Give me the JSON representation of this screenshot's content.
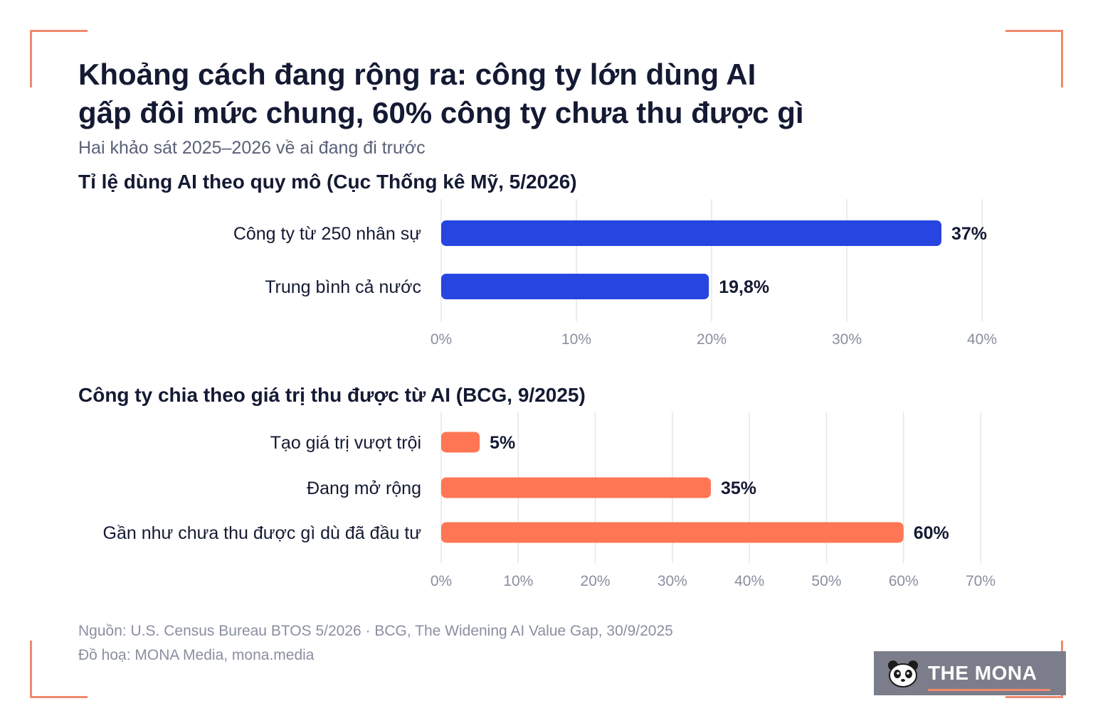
{
  "header": {
    "title_line1": "Khoảng cách đang rộng ra: công ty lớn dùng AI",
    "title_line2": "gấp đôi mức chung, 60% công ty chưa thu được gì",
    "subtitle": "Hai khảo sát 2025–2026 về ai đang đi trước"
  },
  "chart_data": [
    {
      "type": "bar",
      "orientation": "horizontal",
      "title": "Tỉ lệ dùng AI theo quy mô (Cục Thống kê Mỹ, 5/2026)",
      "categories": [
        "Công ty từ 250 nhân sự",
        "Trung bình cả nước"
      ],
      "values": [
        37,
        19.8
      ],
      "value_labels": [
        "37%",
        "19,8%"
      ],
      "xlim": [
        0,
        40
      ],
      "ticks": [
        "0%",
        "10%",
        "20%",
        "30%",
        "40%"
      ],
      "color": "#2745e0",
      "grid": true
    },
    {
      "type": "bar",
      "orientation": "horizontal",
      "title": "Công ty chia theo giá trị thu được từ AI (BCG, 9/2025)",
      "categories": [
        "Tạo giá trị vượt trội",
        "Đang mở rộng",
        "Gần như chưa thu được gì dù đã đầu tư"
      ],
      "values": [
        5,
        35,
        60
      ],
      "value_labels": [
        "5%",
        "35%",
        "60%"
      ],
      "xlim": [
        0,
        70
      ],
      "ticks": [
        "0%",
        "10%",
        "20%",
        "30%",
        "40%",
        "50%",
        "60%",
        "70%"
      ],
      "color": "#ff7655",
      "grid": true
    }
  ],
  "footer": {
    "source": "Nguồn: U.S. Census Bureau BTOS 5/2026 · BCG, The Widening AI Value Gap, 30/9/2025",
    "credit": "Đồ hoạ: MONA Media, mona.media"
  },
  "logo": {
    "text": "THE MONA",
    "icon": "panda-icon"
  },
  "colors": {
    "accent_corner": "#f08a6e",
    "bar_blue": "#2745e0",
    "bar_orange": "#ff7655"
  }
}
